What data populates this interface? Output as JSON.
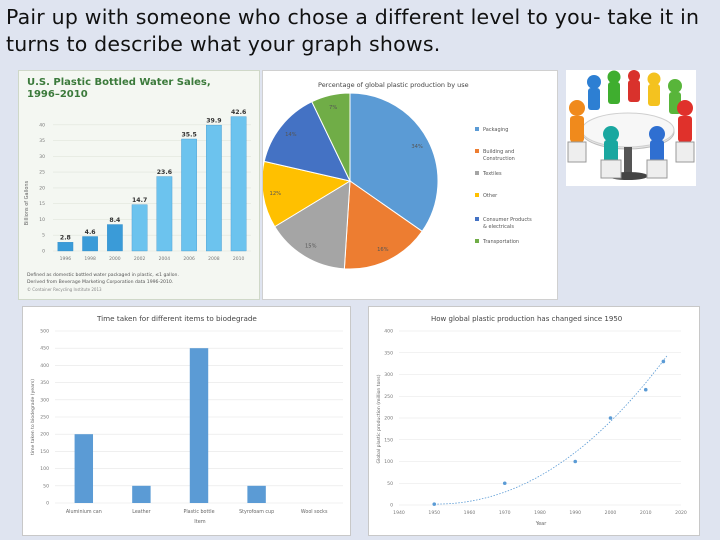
{
  "heading": "Pair up with someone who chose a different level to you- take it in turns to describe what your graph shows.",
  "colors": {
    "bar_green_dark": "#3a9bd8",
    "bar_light": "#6cc3ee",
    "pie_packaging": "#5b9bd5",
    "pie_building": "#ed7d31",
    "pie_textiles": "#a5a5a5",
    "pie_other": "#ffc000",
    "pie_consumer": "#4472c4",
    "pie_transport": "#70ad47",
    "degrade_bar": "#5b9bd5",
    "scatter_point": "#5b9bd5"
  },
  "chart_data": [
    {
      "type": "bar",
      "title": "U.S. Plastic Bottled Water Sales, 1996–2010",
      "ylabel": "Billions of Gallons",
      "categories": [
        "1996",
        "1998",
        "2000",
        "2002",
        "2004",
        "2006",
        "2008",
        "2010"
      ],
      "values": [
        2.8,
        4.6,
        8.4,
        14.7,
        23.6,
        35.5,
        39.9,
        42.6
      ],
      "value_labels": [
        "2.8",
        "4.6",
        "8.4",
        "14.7",
        "23.6",
        "35.5",
        "39.9",
        "42.6"
      ],
      "yticks": [
        "0",
        "5",
        "10",
        "15",
        "20",
        "25",
        "30",
        "35",
        "40"
      ],
      "ylim": [
        0,
        45
      ],
      "footnote_1": "Defined as domestic bottled water packaged in plastic, ≤1 gallon.",
      "footnote_2": "Derived from Beverage Marketing Corporation data 1996-2010.",
      "footnote_3": "© Container Recycling Institute 2013"
    },
    {
      "type": "pie",
      "title": "Percentage of global plastic production by use",
      "slices": [
        {
          "name": "Packaging",
          "value": 34,
          "label": "34%"
        },
        {
          "name": "Building and Construction",
          "value": 16,
          "label": "16%"
        },
        {
          "name": "Textiles",
          "value": 15,
          "label": "15%"
        },
        {
          "name": "Other",
          "value": 12,
          "label": "12%"
        },
        {
          "name": "Consumer Products & electricals",
          "value": 14,
          "label": "14%"
        },
        {
          "name": "Transportation",
          "value": 7,
          "label": "7%"
        }
      ],
      "legend": [
        "Packaging",
        "Building and Construction",
        "Textiles",
        "Other",
        "Consumer Products & electricals",
        "Transportation"
      ]
    },
    {
      "type": "bar",
      "title": "Time taken for different items to biodegrade",
      "ylabel": "time taken to biodegrade (years)",
      "xlabel": "Item",
      "categories": [
        "Aluminium can",
        "Leather",
        "Plastic bottle",
        "Styrofoam cup",
        "Wool socks"
      ],
      "values": [
        200,
        50,
        450,
        50,
        5
      ],
      "yticks": [
        "0",
        "50",
        "100",
        "150",
        "200",
        "250",
        "300",
        "350",
        "400",
        "450",
        "500"
      ],
      "ylim": [
        0,
        500
      ]
    },
    {
      "type": "scatter",
      "title": "How global plastic production has changed since 1950",
      "ylabel": "Global plastic production (million tons)",
      "xlabel": "Year",
      "x": [
        1950,
        1970,
        1990,
        2000,
        2010,
        2015
      ],
      "y": [
        2,
        50,
        100,
        200,
        265,
        330
      ],
      "xticks": [
        "1940",
        "1950",
        "1960",
        "1970",
        "1980",
        "1990",
        "2000",
        "2010",
        "2020"
      ],
      "yticks": [
        "0",
        "50",
        "100",
        "150",
        "200",
        "250",
        "300",
        "350",
        "400"
      ],
      "xlim": [
        1940,
        2020
      ],
      "ylim": [
        0,
        400
      ],
      "trendline": "dotted"
    }
  ],
  "image_meeting": "people around a table"
}
